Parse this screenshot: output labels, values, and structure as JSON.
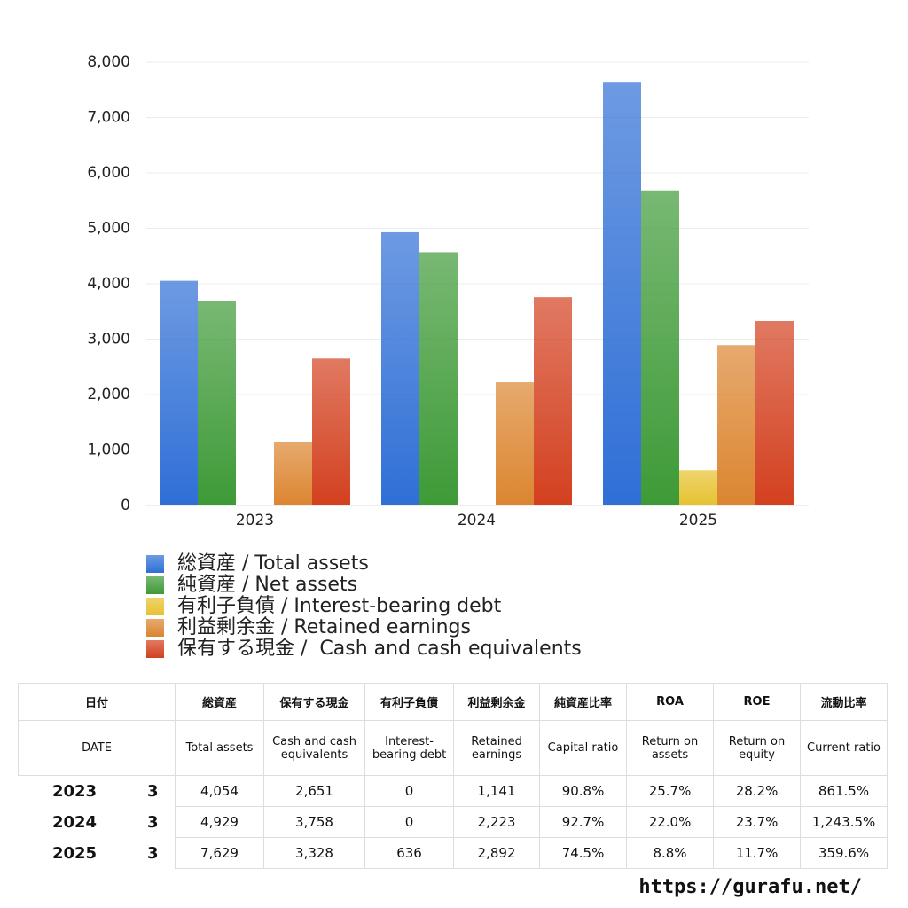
{
  "chart_data": {
    "type": "bar",
    "categories": [
      "2023",
      "2024",
      "2025"
    ],
    "series": [
      {
        "name": "総資産 / Total assets",
        "color": "#2f6fd6",
        "values": [
          4054,
          4929,
          7629
        ]
      },
      {
        "name": "純資産 / Net assets",
        "color": "#3e9a37",
        "values": [
          3681,
          4569,
          5684
        ]
      },
      {
        "name": "有利子負債 / Interest-bearing debt",
        "color": "#e6c230",
        "values": [
          0,
          0,
          636
        ]
      },
      {
        "name": "利益剰余金 / Retained earnings",
        "color": "#dc8530",
        "values": [
          1141,
          2223,
          2892
        ]
      },
      {
        "name": "保有する現金 /  Cash and cash equivalents",
        "color": "#d3401f",
        "values": [
          2651,
          3758,
          3328
        ]
      }
    ],
    "ylim": [
      0,
      8000
    ],
    "yticks": [
      0,
      {
        "value": 1000,
        "label": "1,000"
      },
      {
        "value": 2000,
        "label": "2,000"
      },
      {
        "value": 3000,
        "label": "3,000"
      },
      {
        "value": 4000,
        "label": "4,000"
      },
      {
        "value": 5000,
        "label": "5,000"
      },
      {
        "value": 6000,
        "label": "6,000"
      },
      {
        "value": 7000,
        "label": "7,000"
      },
      {
        "value": 8000,
        "label": "8,000"
      }
    ],
    "grid": true
  },
  "table": {
    "header_jp": [
      "日付",
      "総資産",
      "保有する現金",
      "有利子負債",
      "利益剰余金",
      "純資産比率",
      "ROA",
      "ROE",
      "流動比率"
    ],
    "header_en": [
      "DATE",
      "Total assets",
      "Cash and cash equivalents",
      "Interest-bearing debt",
      "Retained earnings",
      "Capital ratio",
      "Return on assets",
      "Return on equity",
      "Current ratio"
    ],
    "rows": [
      [
        "2023",
        "3",
        "4,054",
        "2,651",
        "0",
        "1,141",
        "90.8%",
        "25.7%",
        "28.2%",
        "861.5%"
      ],
      [
        "2024",
        "3",
        "4,929",
        "3,758",
        "0",
        "2,223",
        "92.7%",
        "22.0%",
        "23.7%",
        "1,243.5%"
      ],
      [
        "2025",
        "3",
        "7,629",
        "3,328",
        "636",
        "2,892",
        "74.5%",
        "8.8%",
        "11.7%",
        "359.6%"
      ]
    ]
  },
  "footer": {
    "url": "https://gurafu.net/"
  }
}
